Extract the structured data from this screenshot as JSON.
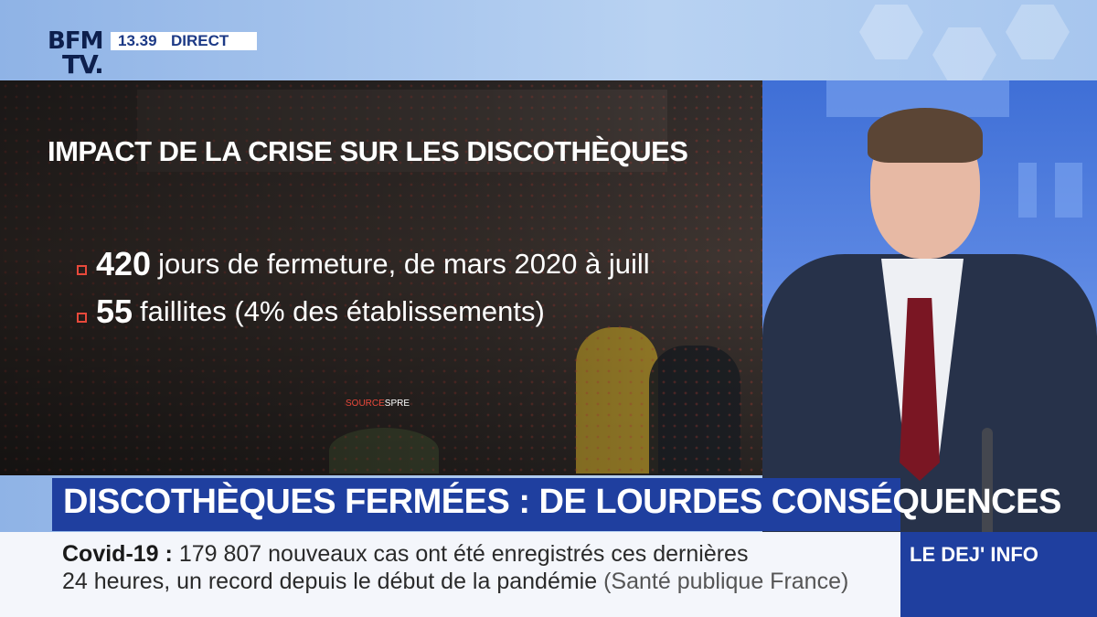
{
  "channel": {
    "logo_line1": "BFM",
    "logo_line2": "TV.",
    "time": "13.39",
    "live": "DIRECT"
  },
  "graphic": {
    "title": "IMPACT DE LA CRISE SUR LES DISCOTHÈQUES",
    "bullets": [
      {
        "number": "420",
        "text": "jours de fermeture, de mars 2020 à juill"
      },
      {
        "number": "55",
        "text": "faillites (4% des établissements)"
      }
    ],
    "source_label": "SOURCE",
    "source_name": "SPRE"
  },
  "headline": "DISCOTHÈQUES FERMÉES : DE LOURDES CONSÉQUENCES",
  "ticker": {
    "label": "Covid-19",
    "separator": ":",
    "line1": "179 807 nouveaux cas ont été enregistrés ces dernières",
    "line2": "24 heures, un record depuis le début de la pandémie",
    "source": "(Santé publique France)"
  },
  "program": "LE DEJ' INFO",
  "colors": {
    "brand_blue": "#1f3f9f",
    "bullet_red": "#e8493b",
    "ticker_bg": "#f4f6fb"
  }
}
